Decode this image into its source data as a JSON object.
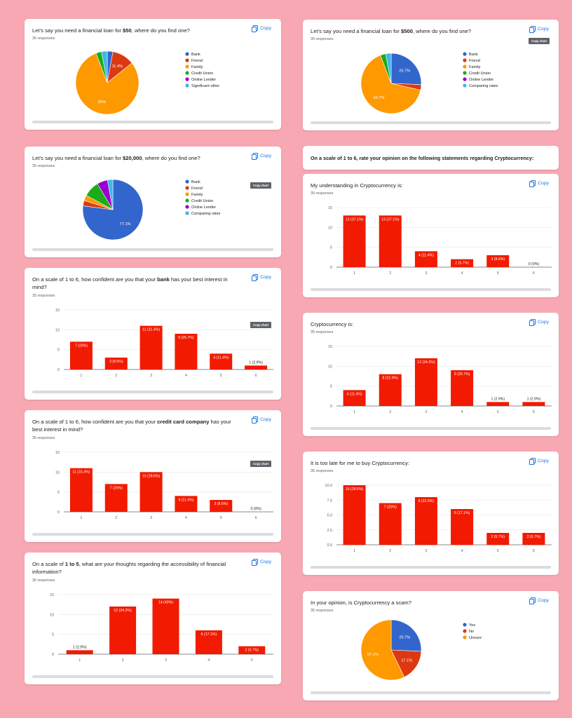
{
  "copy_label": "Copy",
  "copy_chart_label": "Copy chart",
  "colors": {
    "red": "#f21a00",
    "pie": [
      "#3366cc",
      "#dc3912",
      "#ff9900",
      "#1aac1a",
      "#9900cc",
      "#3fb6e8"
    ]
  },
  "section_heading": "On a scale of 1 to 6, rate your opinion on the following statements regarding Cryptocurrency:",
  "chart_data": [
    {
      "id": "c1",
      "type": "pie",
      "title_pre": "Let’s say you need a financial loan for ",
      "title_bold": "$50",
      "title_post": ", where do you find one?",
      "responses": "35 responses",
      "labels": [
        "Bank",
        "Friend",
        "Family",
        "Credit Union",
        "Online Lender",
        "Significant other"
      ],
      "values": [
        2.9,
        11.4,
        80,
        2.9,
        0,
        2.9
      ],
      "slice_labels": [
        "",
        "11.4%",
        "80%",
        "",
        "",
        ""
      ]
    },
    {
      "id": "c2",
      "type": "pie",
      "title_pre": "Let’s say you need a financial loan for ",
      "title_bold": "$500",
      "title_post": ", where do you find one?",
      "responses": "35 responses",
      "labels": [
        "Bank",
        "Friend",
        "Family",
        "Credit Union",
        "Online Lender",
        "Comparing rates"
      ],
      "values": [
        25.7,
        2.9,
        65.7,
        2.9,
        0,
        2.9
      ],
      "slice_labels": [
        "25.7%",
        "",
        "65.7%",
        "",
        "",
        ""
      ]
    },
    {
      "id": "c3",
      "type": "pie",
      "title_pre": "Let’s say you need a financial loan for ",
      "title_bold": "$20,000",
      "title_post": ", where do you find one?",
      "responses": "35 responses",
      "labels": [
        "Bank",
        "Friend",
        "Family",
        "Credit Union",
        "Online Lender",
        "Comparing rates"
      ],
      "values": [
        77.1,
        2.9,
        2.9,
        8.6,
        5.7,
        2.9
      ],
      "slice_labels": [
        "77.1%",
        "",
        "",
        "",
        "",
        ""
      ]
    },
    {
      "id": "c4",
      "type": "bar",
      "title_pre": "On a scale of  1 to 6, how confident are you that your ",
      "title_bold": "bank",
      "title_post": " has your best interest in mind?",
      "responses": "35 responses",
      "categories": [
        "1",
        "2",
        "3",
        "4",
        "5",
        "6"
      ],
      "values": [
        7,
        3,
        11,
        9,
        4,
        1
      ],
      "data_labels": [
        "7 (20%)",
        "3 (8.6%)",
        "11 (31.4%)",
        "9 (25.7%)",
        "4 (11.4%)",
        "1 (2.9%)"
      ],
      "yticks": [
        "0",
        "5",
        "10",
        "15"
      ],
      "ylim": [
        0,
        15
      ]
    },
    {
      "id": "c5",
      "type": "bar",
      "title_pre": "On a scale of  1 to 6, how confident are you that your ",
      "title_bold": "credit card company",
      "title_post": " has your best interest in mind?",
      "responses": "35 responses",
      "categories": [
        "1",
        "2",
        "3",
        "4",
        "5",
        "6"
      ],
      "values": [
        11,
        7,
        10,
        4,
        3,
        0
      ],
      "data_labels": [
        "11 (31.4%)",
        "7 (20%)",
        "10 (28.6%)",
        "4 (11.4%)",
        "3 (8.6%)",
        "0 (0%)"
      ],
      "yticks": [
        "0",
        "5",
        "10",
        "15"
      ],
      "ylim": [
        0,
        15
      ]
    },
    {
      "id": "c6",
      "type": "bar",
      "title_pre": "On a scale of ",
      "title_bold": "1 to 5",
      "title_post": ", what are your thoughts regarding the accessibility of financial information?",
      "responses": "35 responses",
      "categories": [
        "1",
        "2",
        "3",
        "4",
        "5"
      ],
      "values": [
        1,
        12,
        14,
        6,
        2
      ],
      "data_labels": [
        "1 (2.9%)",
        "12 (34.3%)",
        "14 (40%)",
        "6 (17.1%)",
        "2 (5.7%)"
      ],
      "yticks": [
        "0",
        "5",
        "10",
        "15"
      ],
      "ylim": [
        0,
        15
      ]
    },
    {
      "id": "c7",
      "type": "bar",
      "title_pre": "My understanding in Cryptocurrency is:",
      "title_bold": "",
      "title_post": "",
      "responses": "35 responses",
      "categories": [
        "1",
        "2",
        "3",
        "4",
        "5",
        "6"
      ],
      "values": [
        13,
        13,
        4,
        2,
        3,
        0
      ],
      "data_labels": [
        "13 (37.1%)",
        "13 (37.1%)",
        "4 (11.4%)",
        "2 (5.7%)",
        "3 (8.6%)",
        "0 (0%)"
      ],
      "yticks": [
        "0",
        "5",
        "10",
        "15"
      ],
      "ylim": [
        0,
        15
      ]
    },
    {
      "id": "c8",
      "type": "bar",
      "title_pre": "Cryptocurrency is:",
      "title_bold": "",
      "title_post": "",
      "responses": "35 responses",
      "categories": [
        "1",
        "2",
        "3",
        "4",
        "5",
        "6"
      ],
      "values": [
        4,
        8,
        12,
        9,
        1,
        1
      ],
      "data_labels": [
        "4 (11.4%)",
        "8 (22.9%)",
        "12 (34.3%)",
        "9 (25.7%)",
        "1 (2.9%)",
        "1 (2.9%)"
      ],
      "yticks": [
        "0",
        "5",
        "10",
        "15"
      ],
      "ylim": [
        0,
        15
      ]
    },
    {
      "id": "c9",
      "type": "bar",
      "title_pre": "It is too late for me to buy Cryptocurrency:",
      "title_bold": "",
      "title_post": "",
      "responses": "35 responses",
      "categories": [
        "1",
        "2",
        "3",
        "4",
        "5",
        "6"
      ],
      "values": [
        10,
        7,
        8,
        6,
        2,
        2
      ],
      "data_labels": [
        "10 (28.6%)",
        "7 (20%)",
        "8 (22.9%)",
        "6 (17.1%)",
        "2 (5.7%)",
        "2 (5.7%)"
      ],
      "yticks": [
        "0.0",
        "2.5",
        "5.0",
        "7.5",
        "10.0"
      ],
      "ylim": [
        0,
        10
      ]
    },
    {
      "id": "c10",
      "type": "pie",
      "title_pre": "In your opinion, is Cryptocurrency a scam?",
      "title_bold": "",
      "title_post": "",
      "responses": "35 responses",
      "labels": [
        "Yes",
        "No",
        "Unsure"
      ],
      "values": [
        25.7,
        17.1,
        57.1
      ],
      "slice_labels": [
        "25.7%",
        "17.1%",
        "57.1%"
      ]
    }
  ]
}
